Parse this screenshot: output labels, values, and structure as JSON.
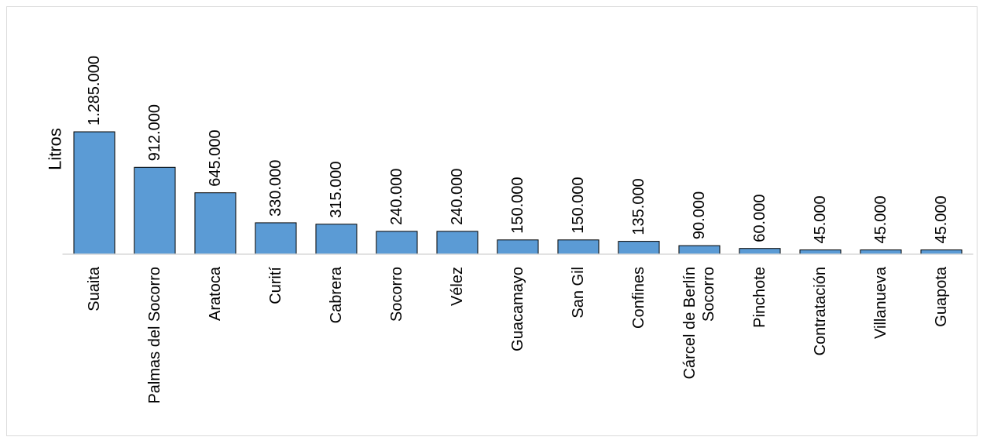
{
  "chart_data": {
    "type": "bar",
    "title": "",
    "xlabel": "",
    "ylabel": "Litros",
    "categories": [
      "Suaita",
      "Palmas del Socorro",
      "Aratoca",
      "Curití",
      "Cabrera",
      "Socorro",
      "Vélez",
      "Guacamayo",
      "San Gil",
      "Confines",
      "Cárcel de Berlín Socorro",
      "Pinchote",
      "Contratación",
      "Villanueva",
      "Guapota"
    ],
    "category_label_lines": [
      [
        "Suaita"
      ],
      [
        "Palmas del Socorro"
      ],
      [
        "Aratoca"
      ],
      [
        "Curití"
      ],
      [
        "Cabrera"
      ],
      [
        "Socorro"
      ],
      [
        "Vélez"
      ],
      [
        "Guacamayo"
      ],
      [
        "San Gil"
      ],
      [
        "Confines"
      ],
      [
        "Cárcel de Berlín",
        "Socorro"
      ],
      [
        "Pinchote"
      ],
      [
        "Contratación"
      ],
      [
        "Villanueva"
      ],
      [
        "Guapota"
      ]
    ],
    "values": [
      1285000,
      912000,
      645000,
      330000,
      315000,
      240000,
      240000,
      150000,
      150000,
      135000,
      90000,
      60000,
      45000,
      45000,
      45000
    ],
    "data_labels": [
      "1.285.000",
      "912.000",
      "645.000",
      "330.000",
      "315.000",
      "240.000",
      "240.000",
      "150.000",
      "150.000",
      "135.000",
      "90.000",
      "60.000",
      "45.000",
      "45.000",
      "45.000"
    ],
    "ylim": [
      0,
      1285000
    ],
    "grid": false,
    "legend": "none",
    "bar_color": "#5b9bd5"
  }
}
